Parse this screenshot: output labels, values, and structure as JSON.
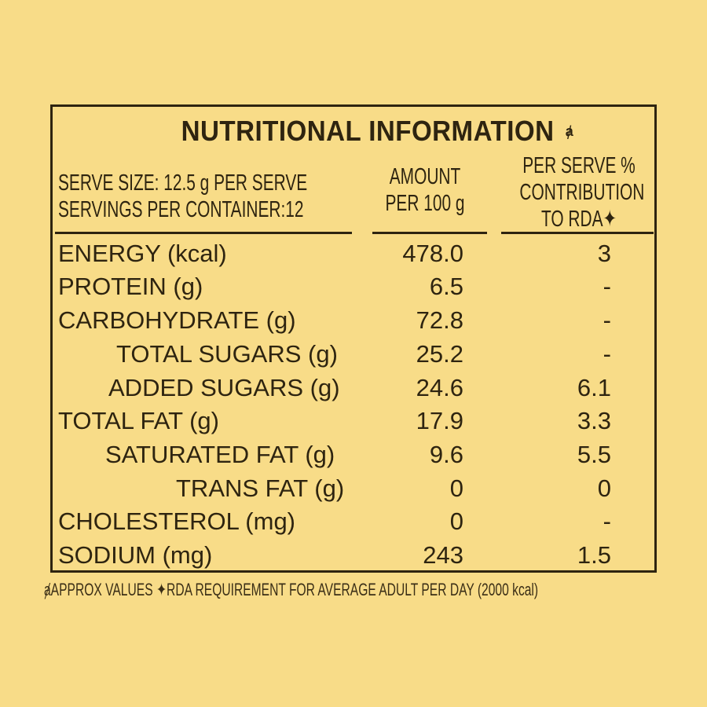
{
  "panel": {
    "title": "NUTRITIONAL INFORMATION",
    "title_marker": "ⱥ"
  },
  "header": {
    "serve_size": "SERVE SIZE: 12.5 g PER SERVE",
    "servings": "SERVINGS PER CONTAINER:12",
    "amount_line1": "AMOUNT",
    "amount_line2": "PER 100 g",
    "rda_line1": "PER SERVE %",
    "rda_line2": "CONTRIBUTION",
    "rda_line3": "TO RDA✦"
  },
  "rows": [
    {
      "label": "ENERGY (kcal)",
      "amount": "478.0",
      "rda": "3"
    },
    {
      "label": "PROTEIN (g)",
      "amount": "6.5",
      "rda": "-"
    },
    {
      "label": "CARBOHYDRATE (g)",
      "amount": "72.8",
      "rda": "-"
    },
    {
      "label": "TOTAL SUGARS (g)",
      "amount": "25.2",
      "rda": "-"
    },
    {
      "label": "ADDED SUGARS (g)",
      "amount": "24.6",
      "rda": "6.1"
    },
    {
      "label": "TOTAL FAT (g)",
      "amount": "17.9",
      "rda": "3.3"
    },
    {
      "label": "SATURATED FAT (g)",
      "amount": "9.6",
      "rda": "5.5"
    },
    {
      "label": "TRANS FAT (g)",
      "amount": "0",
      "rda": "0"
    },
    {
      "label": "CHOLESTEROL (mg)",
      "amount": "0",
      "rda": "-"
    },
    {
      "label": "SODIUM (mg)",
      "amount": "243",
      "rda": "1.5"
    }
  ],
  "footer": "ⱥAPPROX  VALUES ✦RDA REQUIREMENT FOR AVERAGE ADULT PER DAY (2000 kcal)",
  "colors": {
    "background": "#f8dc88",
    "ink": "#2e2410"
  }
}
